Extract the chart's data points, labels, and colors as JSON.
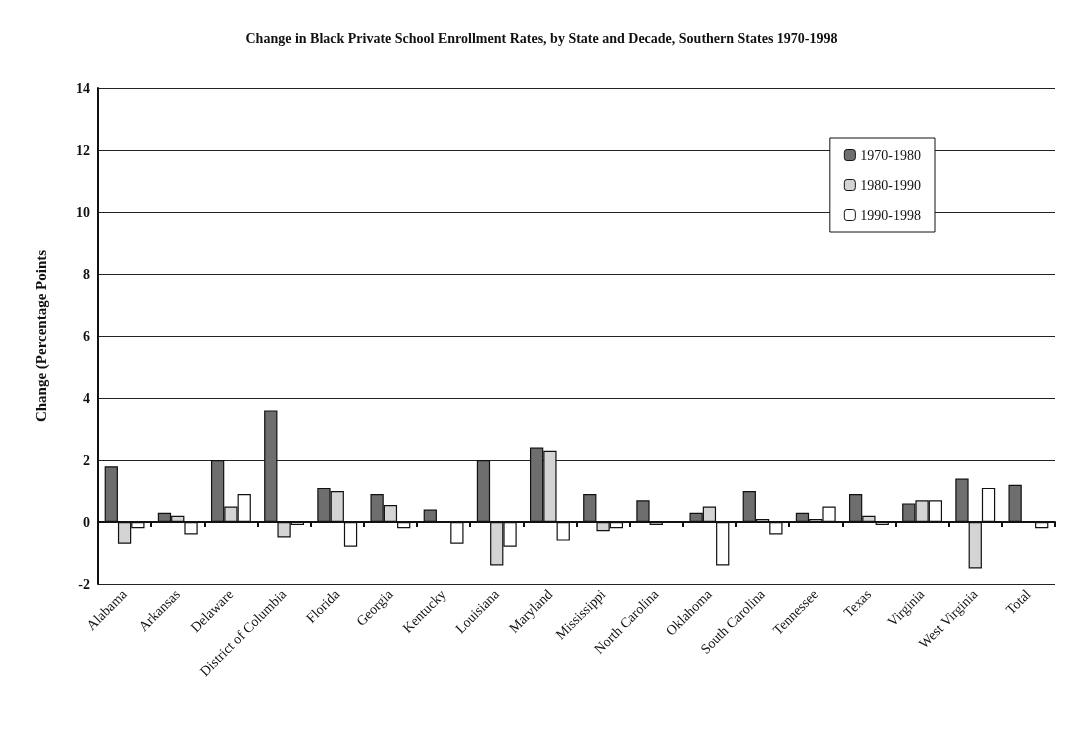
{
  "chart_data": {
    "type": "bar",
    "title": "Change in Black Private School Enrollment Rates, by State and Decade, Southern States 1970-1998",
    "ylabel": "Change (Percentage Points",
    "categories": [
      "Alabama",
      "Arkansas",
      "Delaware",
      "District of Columbia",
      "Florida",
      "Georgia",
      "Kentucky",
      "Louisiana",
      "Maryland",
      "Mississippi",
      "North Carolina",
      "Oklahoma",
      "South Carolina",
      "Tennessee",
      "Texas",
      "Virginia",
      "West Virginia",
      "Total"
    ],
    "series": [
      {
        "name": "1970-1980",
        "color": "#6e6e6e",
        "values": [
          1.8,
          0.3,
          2.0,
          3.6,
          1.1,
          0.9,
          0.4,
          2.0,
          2.4,
          0.9,
          0.7,
          0.3,
          1.0,
          0.3,
          0.9,
          0.6,
          1.4,
          1.2
        ]
      },
      {
        "name": "1980-1990",
        "color": "#d4d4d4",
        "values": [
          -0.7,
          0.2,
          0.5,
          -0.5,
          1.0,
          0.55,
          null,
          -1.4,
          2.3,
          -0.3,
          -0.1,
          0.5,
          0.1,
          0.1,
          0.2,
          0.7,
          -1.5,
          null
        ]
      },
      {
        "name": "1990-1998",
        "color": "#ffffff",
        "values": [
          -0.2,
          -0.4,
          0.9,
          -0.1,
          -0.8,
          -0.2,
          -0.7,
          -0.8,
          -0.6,
          -0.2,
          null,
          -1.4,
          -0.4,
          0.5,
          -0.1,
          0.7,
          1.1,
          -0.2
        ]
      }
    ],
    "ylim": [
      -2,
      14
    ],
    "yticks": [
      -2,
      0,
      2,
      4,
      6,
      8,
      10,
      12,
      14
    ],
    "grid": "y",
    "legend": "top right"
  }
}
